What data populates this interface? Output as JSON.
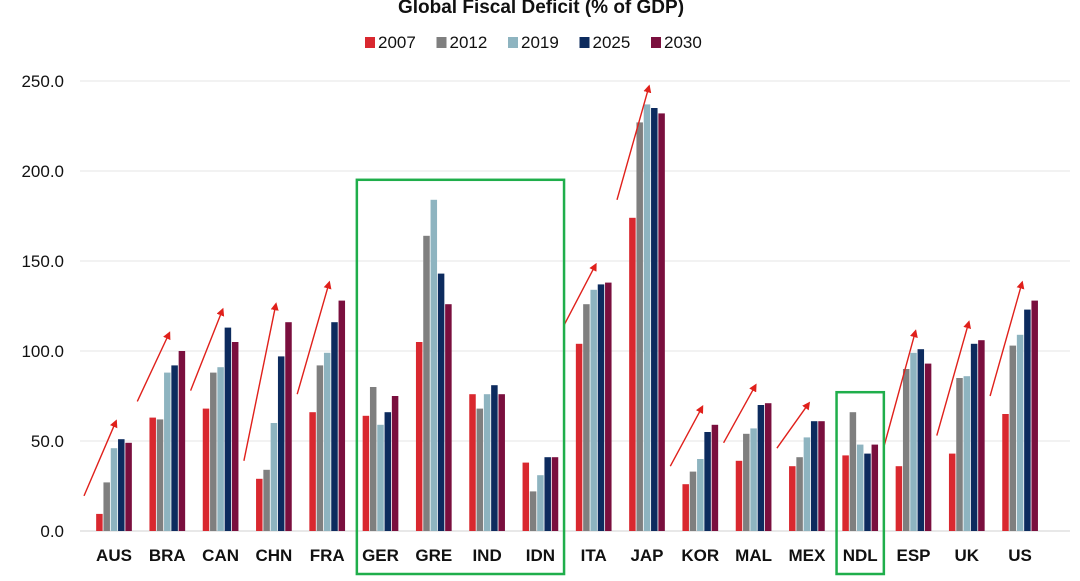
{
  "chart_data": {
    "type": "bar",
    "title": "Global Fiscal Deficit (% of GDP)",
    "xlabel": "",
    "ylabel": "",
    "ylim": [
      0,
      250
    ],
    "y_ticks": [
      "0.0",
      "50.0",
      "100.0",
      "150.0",
      "200.0",
      "250.0"
    ],
    "grid": true,
    "legend_position": "top-center",
    "categories": [
      "AUS",
      "BRA",
      "CAN",
      "CHN",
      "FRA",
      "GER",
      "GRE",
      "IND",
      "IDN",
      "ITA",
      "JAP",
      "KOR",
      "MAL",
      "MEX",
      "NDL",
      "ESP",
      "UK",
      "US"
    ],
    "series": [
      {
        "name": "2007",
        "color": "#d9282f",
        "values": [
          9.5,
          63,
          68,
          29,
          66,
          64,
          105,
          76,
          38,
          104,
          174,
          26,
          39,
          36,
          42,
          36,
          43,
          65
        ]
      },
      {
        "name": "2012",
        "color": "#7f7f7f",
        "values": [
          27,
          62,
          88,
          34,
          92,
          80,
          164,
          68,
          22,
          126,
          227,
          33,
          54,
          41,
          66,
          90,
          85,
          103
        ]
      },
      {
        "name": "2019",
        "color": "#8eb4c0",
        "values": [
          46,
          88,
          91,
          60,
          99,
          59,
          184,
          76,
          31,
          134,
          237,
          40,
          57,
          52,
          48,
          99,
          86,
          109
        ]
      },
      {
        "name": "2025",
        "color": "#0d2b5e",
        "values": [
          51,
          92,
          113,
          97,
          116,
          66,
          143,
          81,
          41,
          137,
          235,
          55,
          70,
          61,
          43,
          101,
          104,
          123
        ]
      },
      {
        "name": "2030",
        "color": "#7a0f3e",
        "values": [
          49,
          100,
          105,
          116,
          128,
          75,
          126,
          76,
          41,
          138,
          232,
          59,
          71,
          61,
          48,
          93,
          106,
          128
        ]
      }
    ],
    "highlight_groups": [
      [
        "GER",
        "GRE",
        "IND",
        "IDN"
      ],
      [
        "NDL"
      ]
    ],
    "trend_arrows": [
      "AUS",
      "BRA",
      "CAN",
      "CHN",
      "FRA",
      "ITA",
      "JAP",
      "KOR",
      "MAL",
      "MEX",
      "ESP",
      "UK",
      "US"
    ]
  },
  "colors": {
    "highlight_box": "#1fae4b",
    "trend_arrow": "#e0201b",
    "gridline": "#e6e6e6"
  }
}
